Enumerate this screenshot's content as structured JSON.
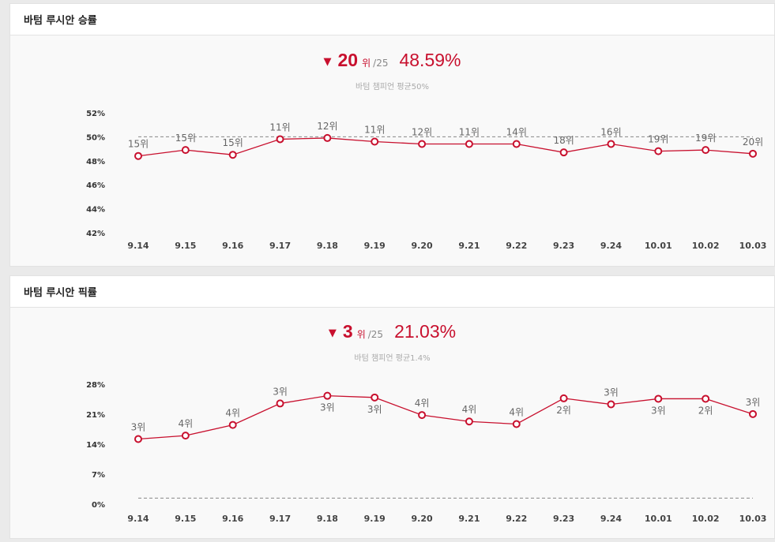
{
  "charts": [
    {
      "panel_title": "바텀 루시안 승률",
      "summary": {
        "trend_icon": "down-triangle-icon",
        "trend_glyph": "▼",
        "rank": "20",
        "rank_unit": "위",
        "rank_total": "/25",
        "percent": "48.59%",
        "average_text": "바텀 챔피언 평균50%"
      },
      "chart_data": {
        "type": "line",
        "title": "",
        "xlabel": "",
        "ylabel": "",
        "categories": [
          "9.14",
          "9.15",
          "9.16",
          "9.17",
          "9.18",
          "9.19",
          "9.20",
          "9.21",
          "9.22",
          "9.23",
          "9.24",
          "10.01",
          "10.02",
          "10.03"
        ],
        "series": [
          {
            "values": [
              48.4,
              48.9,
              48.5,
              49.8,
              49.9,
              49.6,
              49.4,
              49.4,
              49.4,
              48.7,
              49.4,
              48.8,
              48.9,
              48.59
            ],
            "point_labels": [
              "15위",
              "15위",
              "15위",
              "11위",
              "12위",
              "11위",
              "12위",
              "11위",
              "14위",
              "18위",
              "16위",
              "19위",
              "19위",
              "20위"
            ]
          }
        ],
        "reference_line": 50,
        "ylim": [
          42,
          52
        ],
        "yticks": [
          42,
          44,
          46,
          48,
          50,
          52
        ],
        "ytick_labels": [
          "42%",
          "44%",
          "46%",
          "48%",
          "50%",
          "52%"
        ],
        "grid": false,
        "color": "#c8102e"
      }
    },
    {
      "panel_title": "바텀 루시안 픽률",
      "summary": {
        "trend_icon": "down-triangle-icon",
        "trend_glyph": "▼",
        "rank": "3",
        "rank_unit": "위",
        "rank_total": "/25",
        "percent": "21.03%",
        "average_text": "바텀 챔피언 평균1.4%"
      },
      "chart_data": {
        "type": "line",
        "title": "",
        "xlabel": "",
        "ylabel": "",
        "categories": [
          "9.14",
          "9.15",
          "9.16",
          "9.17",
          "9.18",
          "9.19",
          "9.20",
          "9.21",
          "9.22",
          "9.23",
          "9.24",
          "10.01",
          "10.02",
          "10.03"
        ],
        "series": [
          {
            "values": [
              15.2,
              16.0,
              18.5,
              23.5,
              25.3,
              24.9,
              20.8,
              19.3,
              18.7,
              24.7,
              23.3,
              24.6,
              24.6,
              21.03
            ],
            "point_labels": [
              "3위",
              "4위",
              "4위",
              "3위",
              "3위",
              "3위",
              "4위",
              "4위",
              "4위",
              "2위",
              "3위",
              "3위",
              "2위",
              "3위"
            ]
          }
        ],
        "reference_line": 1.4,
        "ylim": [
          0,
          28
        ],
        "yticks": [
          0,
          7,
          14,
          21,
          28
        ],
        "ytick_labels": [
          "0%",
          "7%",
          "14%",
          "21%",
          "28%"
        ],
        "grid": false,
        "color": "#c8102e"
      }
    }
  ]
}
